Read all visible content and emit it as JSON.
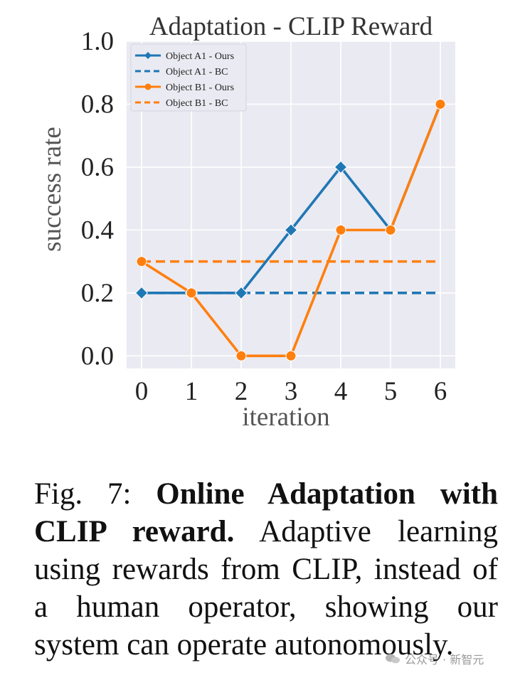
{
  "chart_data": {
    "type": "line",
    "title": "Adaptation - CLIP Reward",
    "xlabel": "iteration",
    "ylabel": "success rate",
    "x": [
      0,
      1,
      2,
      3,
      4,
      5,
      6
    ],
    "xlim": [
      -0.3,
      6.3
    ],
    "ylim": [
      -0.04,
      1.0
    ],
    "xticks": [
      "0",
      "1",
      "2",
      "3",
      "4",
      "5",
      "6"
    ],
    "yticks": [
      "0.0",
      "0.2",
      "0.4",
      "0.6",
      "0.8",
      "1.0"
    ],
    "grid": true,
    "legend_position": "top-left",
    "series": [
      {
        "name": "Object A1 - Ours",
        "values": [
          0.2,
          0.2,
          0.2,
          0.4,
          0.6,
          0.4,
          0.8
        ],
        "color": "#1f77b4",
        "style": "solid",
        "marker": "diamond"
      },
      {
        "name": "Object A1 - BC",
        "values": [
          0.2,
          0.2,
          0.2,
          0.2,
          0.2,
          0.2,
          0.2
        ],
        "color": "#1f77b4",
        "style": "dashed",
        "marker": "none"
      },
      {
        "name": "Object B1 - Ours",
        "values": [
          0.3,
          0.2,
          0.0,
          0.0,
          0.4,
          0.4,
          0.8
        ],
        "color": "#ff7f0e",
        "style": "solid",
        "marker": "circle"
      },
      {
        "name": "Object B1 - BC",
        "values": [
          0.3,
          0.3,
          0.3,
          0.3,
          0.3,
          0.3,
          0.3
        ],
        "color": "#ff7f0e",
        "style": "dashed",
        "marker": "none"
      }
    ],
    "plot_background": "#eaeaf2"
  },
  "caption": {
    "label": "Fig. 7: ",
    "bold": "Online Adaptation with CLIP reward.",
    "text": " Adaptive learning using rewards from CLIP, instead of a human operator, showing our system can operate autonomously."
  },
  "watermark": {
    "text": "公众号 · 新智元",
    "icon": "wechat-icon"
  }
}
